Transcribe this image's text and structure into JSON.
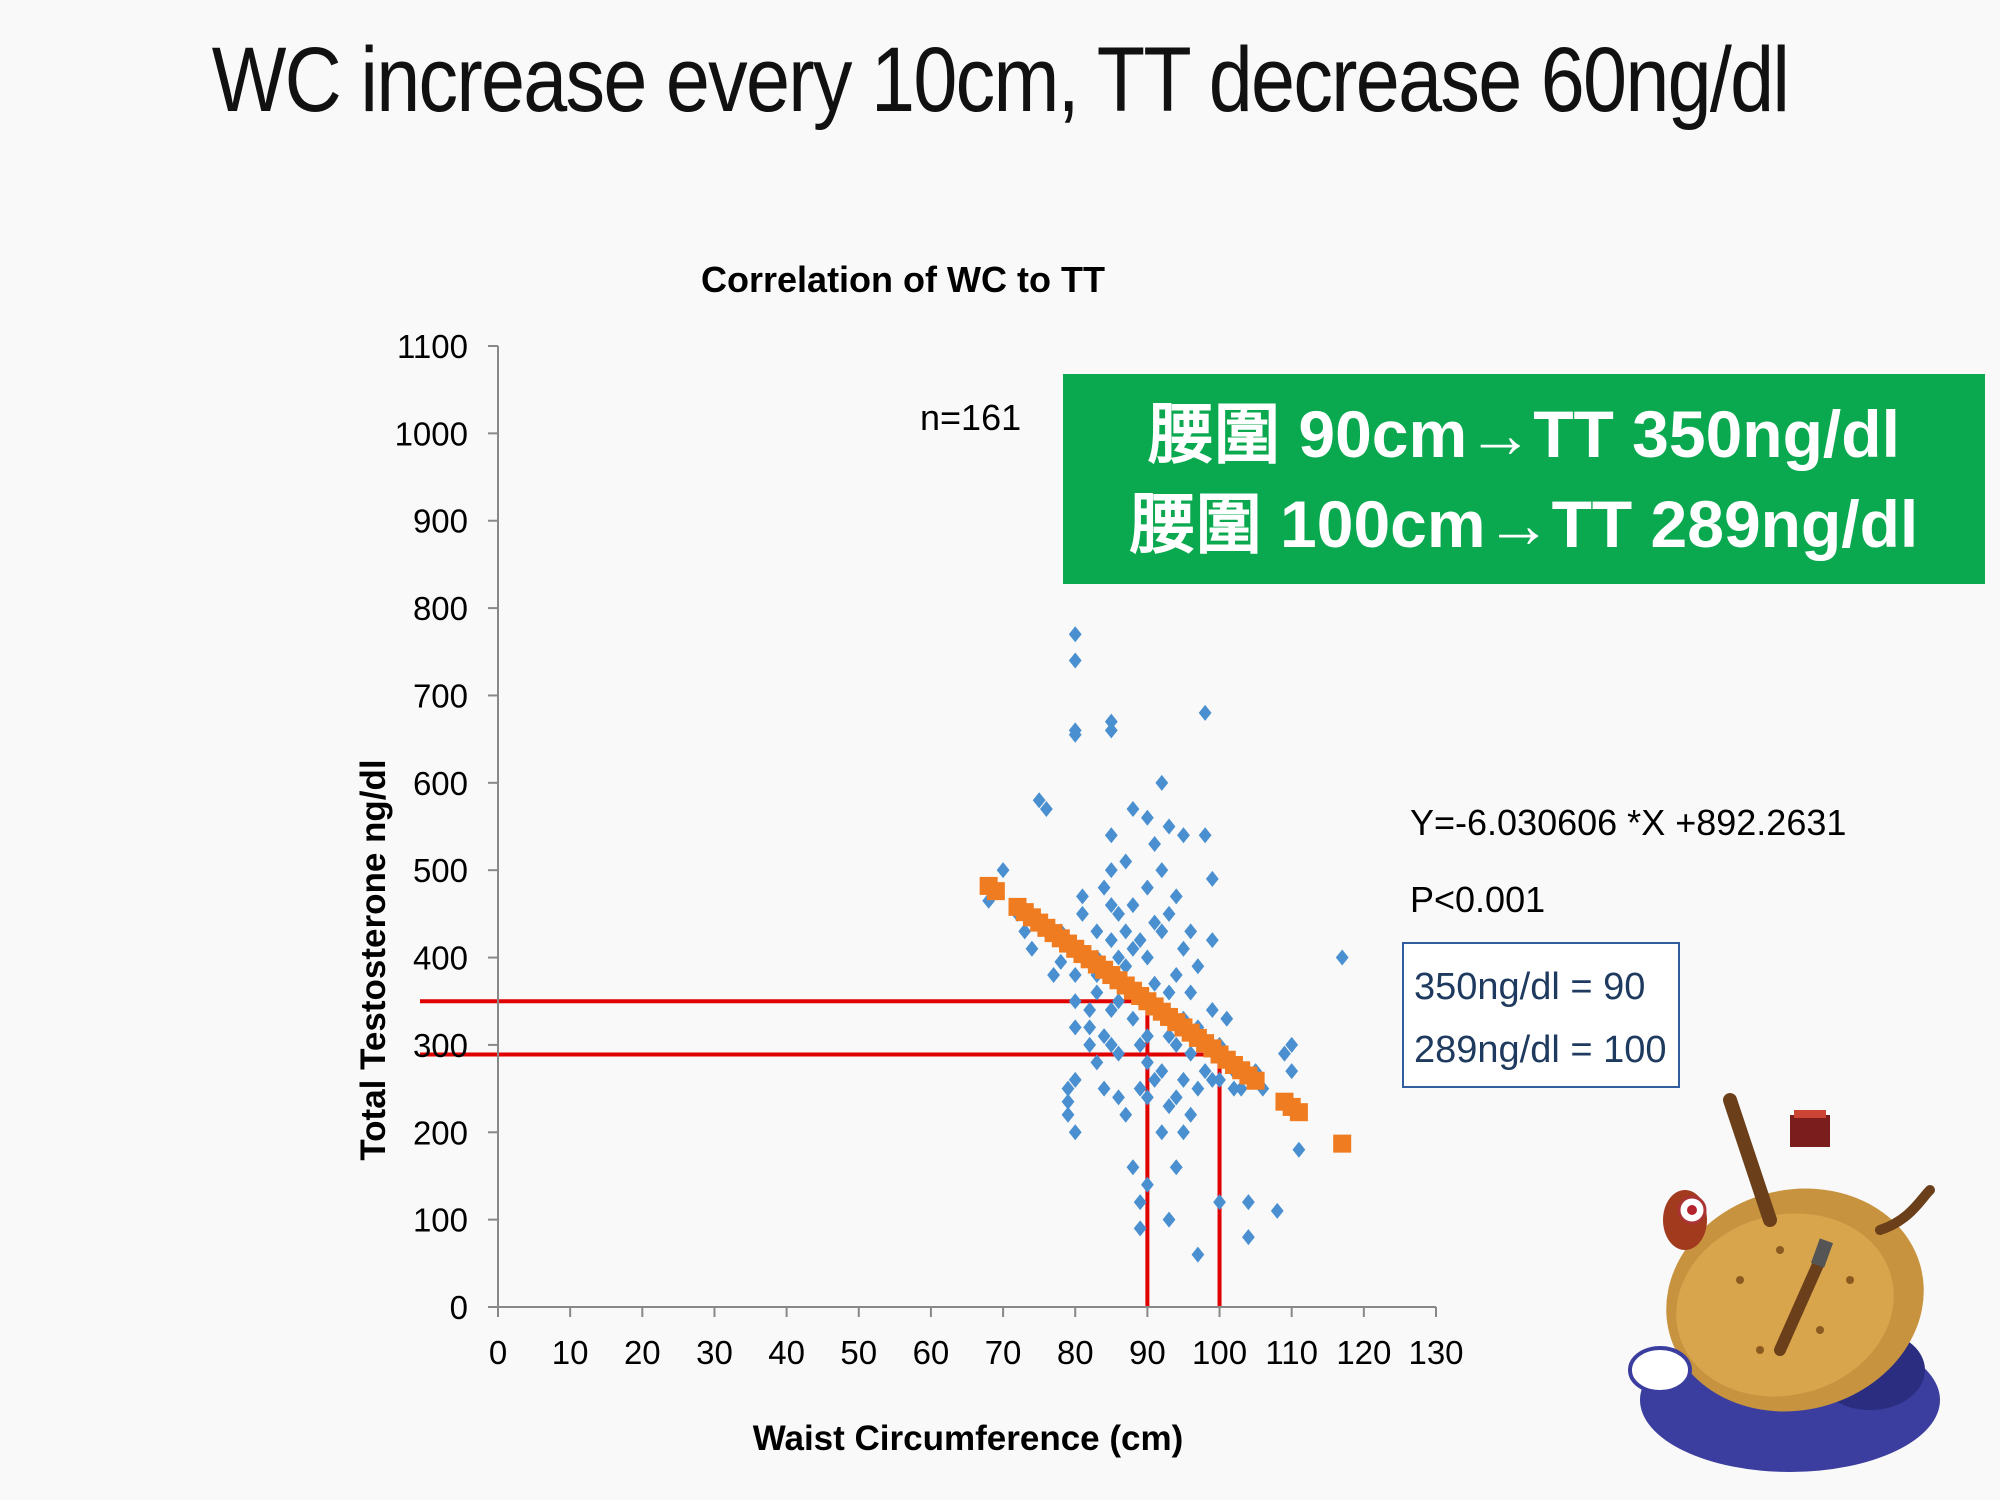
{
  "slide_title": "WC increase every 10cm, TT decrease 60ng/dl",
  "highlight_box": {
    "line1": "腰圍 90cm→TT 350ng/dl",
    "line2": "腰圍 100cm→TT 289ng/dl",
    "background": "#0aa84f"
  },
  "formula_box": {
    "line1": "350ng/dl = 90",
    "line2": "289ng/dl = 100",
    "border": "#2f5f9e"
  },
  "chart_data": {
    "type": "scatter",
    "title": "Correlation of WC to TT",
    "xlabel": "Waist Circumference (cm)",
    "ylabel": "Total Testosterone ng/dl",
    "xlim": [
      0,
      130
    ],
    "ylim": [
      0,
      1100
    ],
    "x_ticks": [
      0,
      10,
      20,
      30,
      40,
      50,
      60,
      70,
      80,
      90,
      100,
      110,
      120,
      130
    ],
    "y_ticks": [
      0,
      100,
      200,
      300,
      400,
      500,
      600,
      700,
      800,
      900,
      1000,
      1100
    ],
    "grid": false,
    "annotations": {
      "n": "n=161",
      "equation": "Y=-6.030606 *X +892.2631",
      "p_value": "P<0.001"
    },
    "reference_lines": [
      {
        "x": 90,
        "y": 350,
        "color": "#e00000"
      },
      {
        "x": 100,
        "y": 289,
        "color": "#e00000"
      }
    ],
    "series": [
      {
        "color": "#4a90d0",
        "marker": "diamond",
        "points": [
          [
            68,
            465
          ],
          [
            70,
            500
          ],
          [
            72,
            450
          ],
          [
            73,
            430
          ],
          [
            74,
            410
          ],
          [
            75,
            580
          ],
          [
            76,
            570
          ],
          [
            77,
            380
          ],
          [
            78,
            395
          ],
          [
            78,
            430
          ],
          [
            79,
            250
          ],
          [
            79,
            220
          ],
          [
            79,
            235
          ],
          [
            80,
            200
          ],
          [
            80,
            320
          ],
          [
            80,
            350
          ],
          [
            80,
            260
          ],
          [
            80,
            380
          ],
          [
            80,
            770
          ],
          [
            80,
            740
          ],
          [
            80,
            660
          ],
          [
            80,
            655
          ],
          [
            81,
            450
          ],
          [
            81,
            470
          ],
          [
            82,
            340
          ],
          [
            82,
            320
          ],
          [
            82,
            300
          ],
          [
            83,
            400
          ],
          [
            83,
            380
          ],
          [
            83,
            360
          ],
          [
            83,
            430
          ],
          [
            83,
            280
          ],
          [
            84,
            480
          ],
          [
            84,
            310
          ],
          [
            84,
            250
          ],
          [
            85,
            540
          ],
          [
            85,
            660
          ],
          [
            85,
            670
          ],
          [
            85,
            500
          ],
          [
            85,
            460
          ],
          [
            85,
            420
          ],
          [
            85,
            380
          ],
          [
            85,
            340
          ],
          [
            85,
            300
          ],
          [
            86,
            450
          ],
          [
            86,
            400
          ],
          [
            86,
            350
          ],
          [
            86,
            290
          ],
          [
            86,
            240
          ],
          [
            87,
            510
          ],
          [
            87,
            430
          ],
          [
            87,
            390
          ],
          [
            87,
            220
          ],
          [
            88,
            570
          ],
          [
            88,
            460
          ],
          [
            88,
            410
          ],
          [
            88,
            330
          ],
          [
            88,
            160
          ],
          [
            89,
            420
          ],
          [
            89,
            300
          ],
          [
            89,
            250
          ],
          [
            89,
            120
          ],
          [
            89,
            90
          ],
          [
            90,
            560
          ],
          [
            90,
            480
          ],
          [
            90,
            400
          ],
          [
            90,
            350
          ],
          [
            90,
            310
          ],
          [
            90,
            280
          ],
          [
            90,
            240
          ],
          [
            90,
            140
          ],
          [
            91,
            530
          ],
          [
            91,
            440
          ],
          [
            91,
            370
          ],
          [
            91,
            260
          ],
          [
            92,
            600
          ],
          [
            92,
            500
          ],
          [
            92,
            430
          ],
          [
            92,
            340
          ],
          [
            92,
            270
          ],
          [
            92,
            200
          ],
          [
            93,
            550
          ],
          [
            93,
            450
          ],
          [
            93,
            360
          ],
          [
            93,
            310
          ],
          [
            93,
            230
          ],
          [
            93,
            100
          ],
          [
            94,
            470
          ],
          [
            94,
            380
          ],
          [
            94,
            300
          ],
          [
            94,
            240
          ],
          [
            94,
            160
          ],
          [
            95,
            540
          ],
          [
            95,
            410
          ],
          [
            95,
            330
          ],
          [
            95,
            260
          ],
          [
            95,
            200
          ],
          [
            96,
            430
          ],
          [
            96,
            360
          ],
          [
            96,
            290
          ],
          [
            96,
            220
          ],
          [
            97,
            390
          ],
          [
            97,
            320
          ],
          [
            97,
            250
          ],
          [
            97,
            60
          ],
          [
            98,
            680
          ],
          [
            98,
            540
          ],
          [
            98,
            300
          ],
          [
            98,
            270
          ],
          [
            99,
            490
          ],
          [
            99,
            420
          ],
          [
            99,
            340
          ],
          [
            99,
            260
          ],
          [
            100,
            300
          ],
          [
            100,
            260
          ],
          [
            100,
            120
          ],
          [
            101,
            330
          ],
          [
            101,
            280
          ],
          [
            102,
            270
          ],
          [
            102,
            250
          ],
          [
            103,
            250
          ],
          [
            104,
            120
          ],
          [
            104,
            80
          ],
          [
            105,
            270
          ],
          [
            106,
            250
          ],
          [
            108,
            110
          ],
          [
            109,
            290
          ],
          [
            110,
            300
          ],
          [
            110,
            270
          ],
          [
            111,
            180
          ],
          [
            117,
            400
          ]
        ]
      },
      {
        "color": "#f07c22",
        "marker": "square",
        "points": [
          [
            68,
            482
          ],
          [
            69,
            476
          ],
          [
            72,
            458
          ],
          [
            73,
            452
          ],
          [
            74,
            446
          ],
          [
            75,
            440
          ],
          [
            76,
            434
          ],
          [
            77,
            428
          ],
          [
            78,
            422
          ],
          [
            79,
            416
          ],
          [
            80,
            410
          ],
          [
            81,
            404
          ],
          [
            82,
            398
          ],
          [
            83,
            392
          ],
          [
            84,
            386
          ],
          [
            85,
            380
          ],
          [
            86,
            374
          ],
          [
            87,
            368
          ],
          [
            88,
            362
          ],
          [
            89,
            356
          ],
          [
            90,
            350
          ],
          [
            91,
            344
          ],
          [
            92,
            338
          ],
          [
            93,
            332
          ],
          [
            94,
            326
          ],
          [
            95,
            320
          ],
          [
            96,
            314
          ],
          [
            97,
            308
          ],
          [
            98,
            302
          ],
          [
            99,
            296
          ],
          [
            100,
            289
          ],
          [
            101,
            283
          ],
          [
            102,
            277
          ],
          [
            103,
            271
          ],
          [
            104,
            265
          ],
          [
            105,
            259
          ],
          [
            109,
            235
          ],
          [
            110,
            229
          ],
          [
            111,
            223
          ],
          [
            117,
            187
          ]
        ]
      }
    ]
  }
}
